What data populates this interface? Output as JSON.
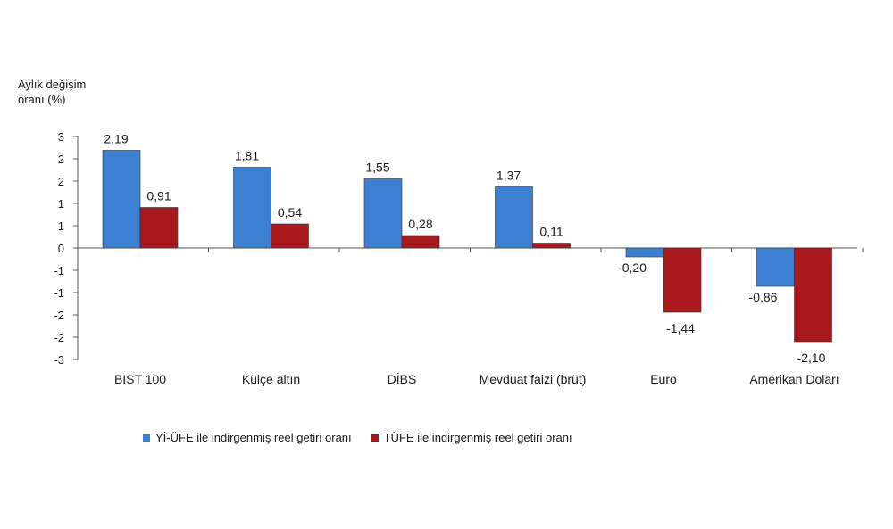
{
  "chart_data": {
    "type": "bar",
    "ylabel_lines": [
      "Aylık değişim",
      "oranı (%)"
    ],
    "categories": [
      "BIST 100",
      "Külçe altın",
      "DİBS",
      "Mevduat faizi (brüt)",
      "Euro",
      "Amerikan Doları"
    ],
    "series": [
      {
        "name": "Yİ-ÜFE ile indirgenmiş reel getiri oranı",
        "color": "#3d7fd0",
        "values": [
          2.19,
          1.81,
          1.55,
          1.37,
          -0.2,
          -0.86
        ],
        "labels": [
          "2,19",
          "1,81",
          "1,55",
          "1,37",
          "-0,20",
          "-0,86"
        ]
      },
      {
        "name": "TÜFE ile indirgenmiş reel getiri oranı",
        "color": "#a8191d",
        "values": [
          0.91,
          0.54,
          0.28,
          0.11,
          -1.44,
          -2.1
        ],
        "labels": [
          "0,91",
          "0,54",
          "0,28",
          "0,11",
          "-1,44",
          "-2,10"
        ]
      }
    ],
    "ylim": [
      -2.5,
      2.5
    ],
    "yticks": [
      -2.5,
      -2.0,
      -1.5,
      -1.0,
      -0.5,
      0,
      0.5,
      1.0,
      1.5,
      2.0,
      2.5
    ],
    "ytick_labels": [
      "-3",
      "-2",
      "-2",
      "-1",
      "-1",
      "0",
      "1",
      "1",
      "2",
      "2",
      "3"
    ],
    "grid": false,
    "legend_position": "bottom"
  }
}
